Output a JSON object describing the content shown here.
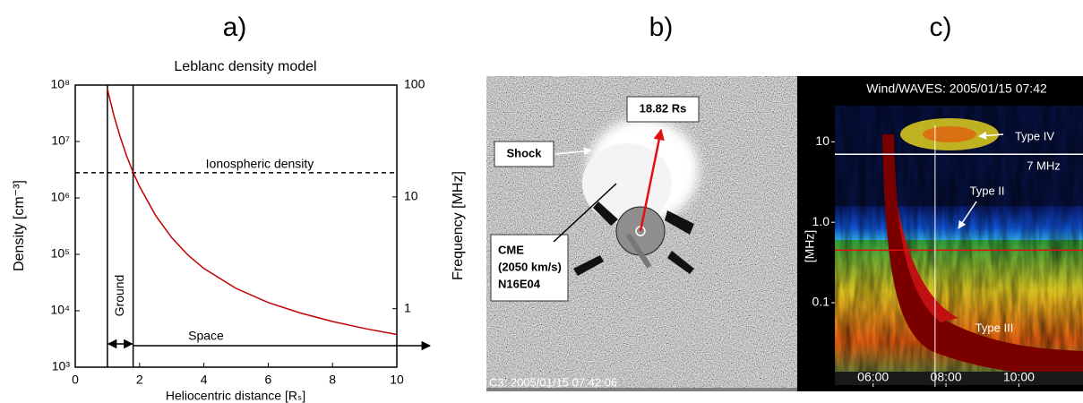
{
  "panel_labels": [
    "a)",
    "b)",
    "c)"
  ],
  "chart_data": [
    {
      "type": "line",
      "title": "Leblanc density model",
      "xlabel": "Heliocentric distance [Rₛ]",
      "ylabel": "Density [cm⁻³]",
      "y2label": "Frequency [MHz]",
      "x": [
        1,
        1.2,
        1.4,
        1.6,
        1.8,
        2,
        2.5,
        3,
        3.5,
        4,
        5,
        6,
        7,
        8,
        9,
        10
      ],
      "values": [
        84430000,
        29000000,
        11860000,
        5520000,
        2840000,
        1590000,
        485000,
        197000,
        97800,
        56200,
        24900,
        14000,
        9120,
        6460,
        4850,
        3790
      ],
      "color": "#c00000",
      "xlim": [
        0,
        10
      ],
      "xticks": [
        0,
        2,
        4,
        6,
        8,
        10
      ],
      "ylim": [
        1000,
        100000000
      ],
      "yticks": [
        {
          "value": 1000,
          "label": "10³"
        },
        {
          "value": 10000,
          "label": "10⁴"
        },
        {
          "value": 100000,
          "label": "10⁵"
        },
        {
          "value": 1000000,
          "label": "10⁶"
        },
        {
          "value": 10000000,
          "label": "10⁷"
        },
        {
          "value": 100000000,
          "label": "10⁸"
        }
      ],
      "log_y": true,
      "y2lim": [
        0.3,
        100
      ],
      "y2ticks": [
        1,
        10,
        100
      ],
      "log_y2": true,
      "vlines": [
        1,
        1.8
      ],
      "hline": {
        "value": 2800000,
        "label": "Ionospheric density"
      },
      "annotations": [
        "Ground",
        "Space"
      ]
    },
    {
      "type": "spectrogram",
      "title": "Wind/WAVES: 2005/01/15 07:42",
      "ylabel": "[MHz]",
      "xlim": [
        4.95,
        11.76
      ],
      "xticks": [
        {
          "value": 6,
          "label": "06:00"
        },
        {
          "value": 8,
          "label": "08:00"
        },
        {
          "value": 10,
          "label": "10:00"
        }
      ],
      "ylim": [
        0.009,
        16
      ],
      "yticks": [
        10,
        {
          "value": 1,
          "label": "1.0"
        },
        0.1
      ],
      "log_y": true,
      "hlines": [
        {
          "value": 7,
          "color": "#ffffff",
          "label": "7 MHz"
        },
        {
          "value": 0.45,
          "color": "#e01010"
        }
      ],
      "vline": 7.7,
      "annotations": [
        "Type IV",
        "Type II",
        "Type III"
      ]
    }
  ],
  "image_panel": {
    "caption": "C3: 2005/01/15 07:42:06",
    "height_label": "18.82 Rs",
    "shock_label": "Shock",
    "cme_label": [
      "CME",
      "(2050 km/s)",
      "N16E04"
    ]
  }
}
